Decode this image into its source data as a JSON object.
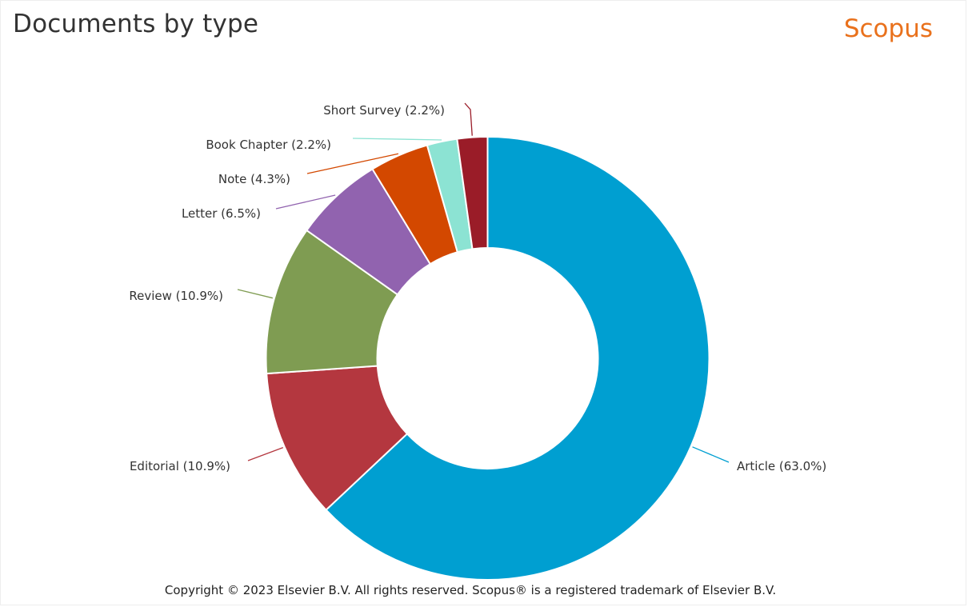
{
  "header": {
    "title": "Documents by type",
    "brand": "Scopus"
  },
  "footer": {
    "copyright": "Copyright © 2023 Elsevier B.V. All rights reserved. Scopus® is a registered trademark of Elsevier B.V."
  },
  "chart_data": {
    "type": "pie",
    "title": "Documents by type",
    "donut": true,
    "slices": [
      {
        "label": "Article",
        "percent": 63.0,
        "display": "Article (63.0%)",
        "color": "#009fd1"
      },
      {
        "label": "Editorial",
        "percent": 10.9,
        "display": "Editorial (10.9%)",
        "color": "#b4373f"
      },
      {
        "label": "Review",
        "percent": 10.9,
        "display": "Review (10.9%)",
        "color": "#7f9c52"
      },
      {
        "label": "Letter",
        "percent": 6.5,
        "display": "Letter (6.5%)",
        "color": "#9163af"
      },
      {
        "label": "Note",
        "percent": 4.3,
        "display": "Note (4.3%)",
        "color": "#d34800"
      },
      {
        "label": "Book Chapter",
        "percent": 2.2,
        "display": "Book Chapter (2.2%)",
        "color": "#8ce3d3"
      },
      {
        "label": "Short Survey",
        "percent": 2.2,
        "display": "Short Survey (2.2%)",
        "color": "#9a1c28"
      }
    ]
  }
}
